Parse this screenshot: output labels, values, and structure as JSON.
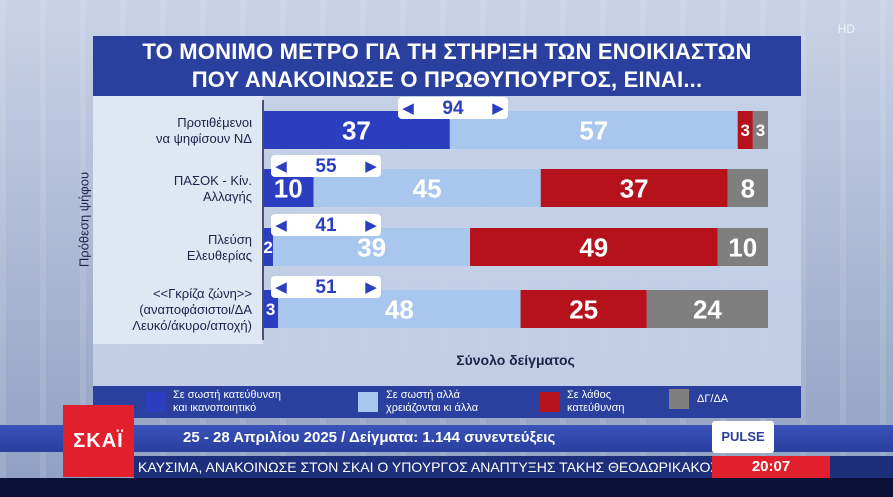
{
  "hd_badge": "HD",
  "title_lines": [
    "ΤΟ ΜΟΝΙΜΟ ΜΕΤΡΟ ΓΙΑ ΤΗ ΣΤΗΡΙΞΗ ΤΩΝ ΕΝΟΙΚΙΑΣΤΩΝ",
    "ΠΟΥ ΑΝΑΚΟΙΝΩΣΕ Ο ΠΡΩΘΥΠΟΥΡΓΟΣ, ΕΙΝΑΙ..."
  ],
  "ylabel": "Πρόθεση ψήφου",
  "xlabel": "Σύνολο δείγματος",
  "chart_data": {
    "type": "bar",
    "orientation": "horizontal",
    "stacked": true,
    "unit": "%",
    "categories": [
      [
        "Προτιθέμενοι",
        "να ψηφίσουν ΝΔ"
      ],
      [
        "ΠΑΣΟΚ - Κίν.",
        "Αλλαγής"
      ],
      [
        "Πλεύση",
        "Ελευθερίας"
      ],
      [
        "<<Γκρίζα ζώνη>>",
        "(αναποφάσιστοι/ΔΑ",
        "Λευκό/άκυρο/αποχή)"
      ]
    ],
    "series": [
      {
        "name": "Σε σωστή κατεύθυνση και ικανοποιητικό",
        "color": "#2b3ec0",
        "values": [
          37,
          10,
          2,
          3
        ]
      },
      {
        "name": "Σε σωστή αλλά χρειάζονται κι άλλα",
        "color": "#a9c7ee",
        "values": [
          57,
          45,
          39,
          48
        ]
      },
      {
        "name": "Σε λάθος κατεύθυνση",
        "color": "#b5121b",
        "values": [
          3,
          37,
          49,
          25
        ]
      },
      {
        "name": "ΔΓ/ΔΑ",
        "color": "#7f7f7f",
        "values": [
          3,
          8,
          10,
          24
        ]
      }
    ],
    "combined_totals": [
      94,
      55,
      41,
      51
    ],
    "xlim": [
      0,
      100
    ],
    "grid": false,
    "legend_position": "bottom"
  },
  "legend": [
    {
      "lines": [
        "Σε σωστή κατεύθυνση",
        "και ικανοποιητικό"
      ],
      "color": "#2b3ec0"
    },
    {
      "lines": [
        "Σε σωστή αλλά",
        "χρειάζονται κι άλλα"
      ],
      "color": "#a9c7ee"
    },
    {
      "lines": [
        "Σε λάθος",
        "κατεύθυνση"
      ],
      "color": "#b5121b"
    },
    {
      "lines": [
        "ΔΓ/ΔΑ"
      ],
      "color": "#7f7f7f"
    }
  ],
  "footer_text": "25 - 28 Απριλίου 2025 / Δείγματα: 1.144 συνεντεύξεις",
  "pulse_logo": "PULSE",
  "channel_logo": "ΣΚΑΪ",
  "ticker_text": "ΚΑΥΣΙΜΑ, ΑΝΑΚΟΙΝΩΣΕ ΣΤΟΝ ΣΚΑΙ Ο ΥΠΟΥΡΓΟΣ ΑΝΑΠΤΥΞΗΣ ΤΑΚΗΣ ΘΕΟΔΩΡΙΚΑΚΟΣ. ΑΝΑΚ",
  "clock": "20:07"
}
